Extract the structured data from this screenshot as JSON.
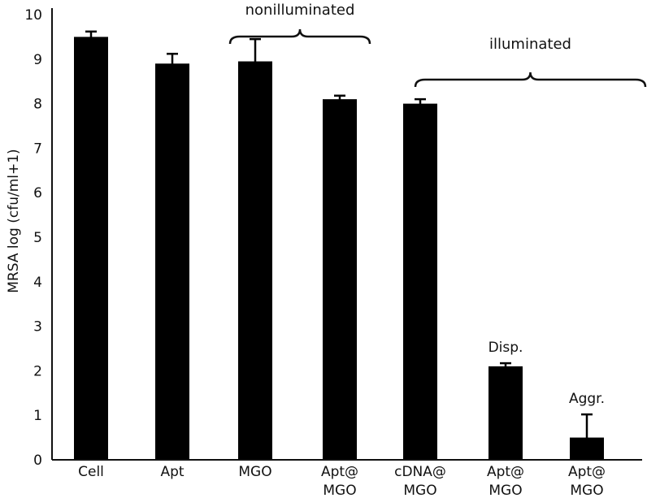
{
  "chart_data": {
    "type": "bar",
    "ylabel": "MRSA log (cfu/ml+1)",
    "xlabel": "",
    "ylim": [
      0,
      10
    ],
    "yticks": [
      0,
      1,
      2,
      3,
      4,
      5,
      6,
      7,
      8,
      9,
      10
    ],
    "grid": false,
    "bar_color": "#000000",
    "categories": [
      {
        "line1": "Cell",
        "line2": ""
      },
      {
        "line1": "Apt",
        "line2": ""
      },
      {
        "line1": "MGO",
        "line2": ""
      },
      {
        "line1": "Apt@",
        "line2": "MGO"
      },
      {
        "line1": "cDNA@",
        "line2": "MGO"
      },
      {
        "line1": "Apt@",
        "line2": "MGO"
      },
      {
        "line1": "Apt@",
        "line2": "MGO"
      }
    ],
    "values": [
      9.5,
      8.9,
      8.95,
      8.1,
      8.0,
      2.1,
      0.5
    ],
    "errors": [
      0.12,
      0.22,
      0.5,
      0.08,
      0.1,
      0.07,
      0.52
    ],
    "bar_labels": [
      "",
      "",
      "",
      "",
      "",
      "Disp.",
      "Aggr."
    ],
    "groups": [
      {
        "label": "nonilluminated",
        "from": 2,
        "to": 3
      },
      {
        "label": "illuminated",
        "from": 4,
        "to": 6
      }
    ]
  }
}
